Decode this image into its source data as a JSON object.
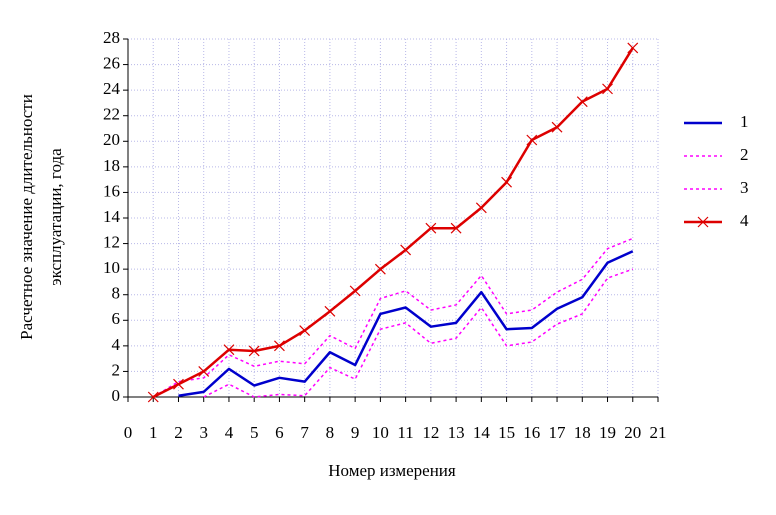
{
  "chart_data": {
    "type": "line",
    "xlabel": "Номер измерения",
    "ylabel": [
      "Расчетное значение длительности",
      "эксплуатации, года"
    ],
    "x": [
      1,
      2,
      3,
      4,
      5,
      6,
      7,
      8,
      9,
      10,
      11,
      12,
      13,
      14,
      15,
      16,
      17,
      18,
      19,
      20
    ],
    "series": [
      {
        "name": "1",
        "color": "#0000cc",
        "dash": false,
        "marker": false,
        "values": [
          null,
          0.1,
          0.4,
          2.2,
          0.9,
          1.5,
          1.2,
          3.5,
          2.5,
          6.5,
          7.0,
          5.5,
          5.8,
          8.2,
          5.3,
          5.4,
          6.9,
          7.8,
          10.5,
          11.4
        ]
      },
      {
        "name": "2",
        "color": "#ff00ff",
        "dash": true,
        "marker": false,
        "values": [
          0,
          1.2,
          1.5,
          3.3,
          2.4,
          2.8,
          2.6,
          4.8,
          3.8,
          7.7,
          8.3,
          6.8,
          7.2,
          9.5,
          6.5,
          6.8,
          8.2,
          9.2,
          11.6,
          12.4
        ]
      },
      {
        "name": "3",
        "color": "#ff00ff",
        "dash": true,
        "marker": false,
        "values": [
          null,
          null,
          0,
          1.0,
          0,
          0.2,
          0.1,
          2.3,
          1.4,
          5.3,
          5.8,
          4.2,
          4.6,
          7.0,
          4.0,
          4.3,
          5.7,
          6.5,
          9.3,
          10.0
        ]
      },
      {
        "name": "4",
        "color": "#dd0000",
        "dash": false,
        "marker": true,
        "values": [
          0,
          1.0,
          2.0,
          3.7,
          3.6,
          4.0,
          5.2,
          6.7,
          8.3,
          10.0,
          11.5,
          13.2,
          13.2,
          14.8,
          16.8,
          20.1,
          21.1,
          23.1,
          24.1,
          27.3
        ]
      }
    ],
    "xlim": [
      0,
      21
    ],
    "xticks": [
      0,
      1,
      2,
      3,
      4,
      5,
      6,
      7,
      8,
      9,
      10,
      11,
      12,
      13,
      14,
      15,
      16,
      17,
      18,
      19,
      20,
      21
    ],
    "ylim": [
      0,
      28
    ],
    "yticks": [
      0,
      2,
      4,
      6,
      8,
      10,
      12,
      14,
      16,
      18,
      20,
      22,
      24,
      26,
      28
    ],
    "grid": true,
    "legend": "right"
  }
}
